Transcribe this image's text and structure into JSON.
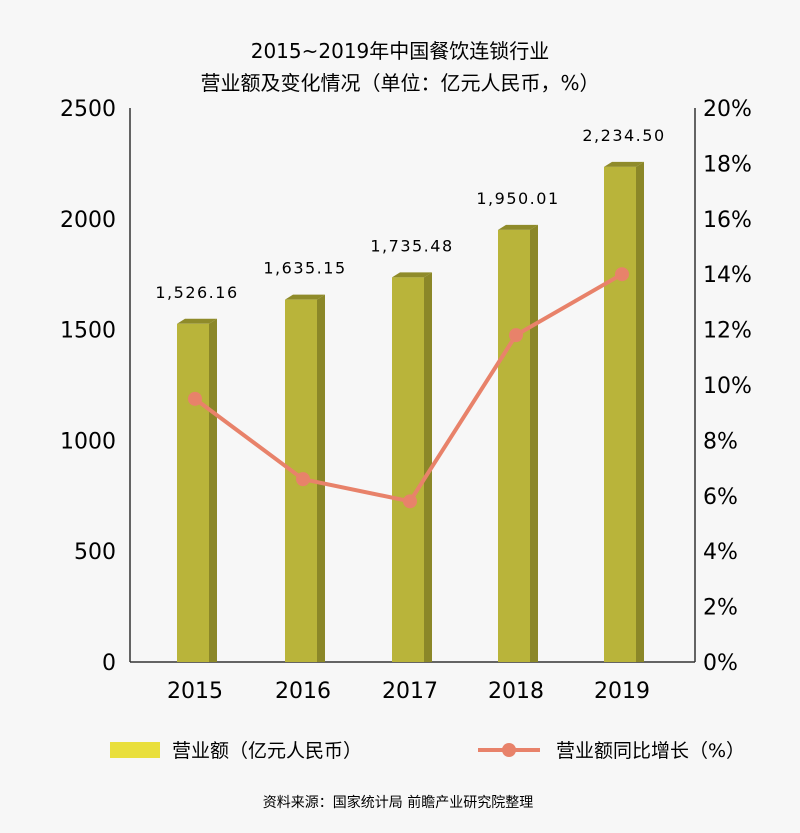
{
  "chart_data": {
    "type": "bar",
    "title_line1": "2015~2019年中国餐饮连锁行业",
    "title_line2": "营业额及变化情况（单位：亿元人民币，%）",
    "categories": [
      "2015",
      "2016",
      "2017",
      "2018",
      "2019"
    ],
    "y_ticks": [
      "2500",
      "2000",
      "1500",
      "1000",
      "500",
      "0"
    ],
    "y2_ticks": [
      "20%",
      "18%",
      "16%",
      "14%",
      "12%",
      "10%",
      "8%",
      "6%",
      "4%",
      "2%",
      "0%"
    ],
    "ylim": [
      0,
      2500
    ],
    "y2lim": [
      0,
      20
    ],
    "series": [
      {
        "name": "营业额（亿元人民币）",
        "type": "bar",
        "color": "#b9b43a",
        "values": [
          1526.16,
          1635.15,
          1735.48,
          1950.01,
          2234.5
        ],
        "labels": [
          "1,526.16",
          "1,635.15",
          "1,735.48",
          "1,950.01",
          "2,234.50"
        ]
      },
      {
        "name": "营业额同比增长（%）",
        "type": "line",
        "axis": "right",
        "color": "#e8826a",
        "values": [
          9.5,
          6.6,
          5.8,
          11.8,
          14.0
        ]
      }
    ],
    "legend_position": "bottom",
    "grid": false,
    "source": "资料来源：国家统计局 前瞻产业研究院整理"
  }
}
